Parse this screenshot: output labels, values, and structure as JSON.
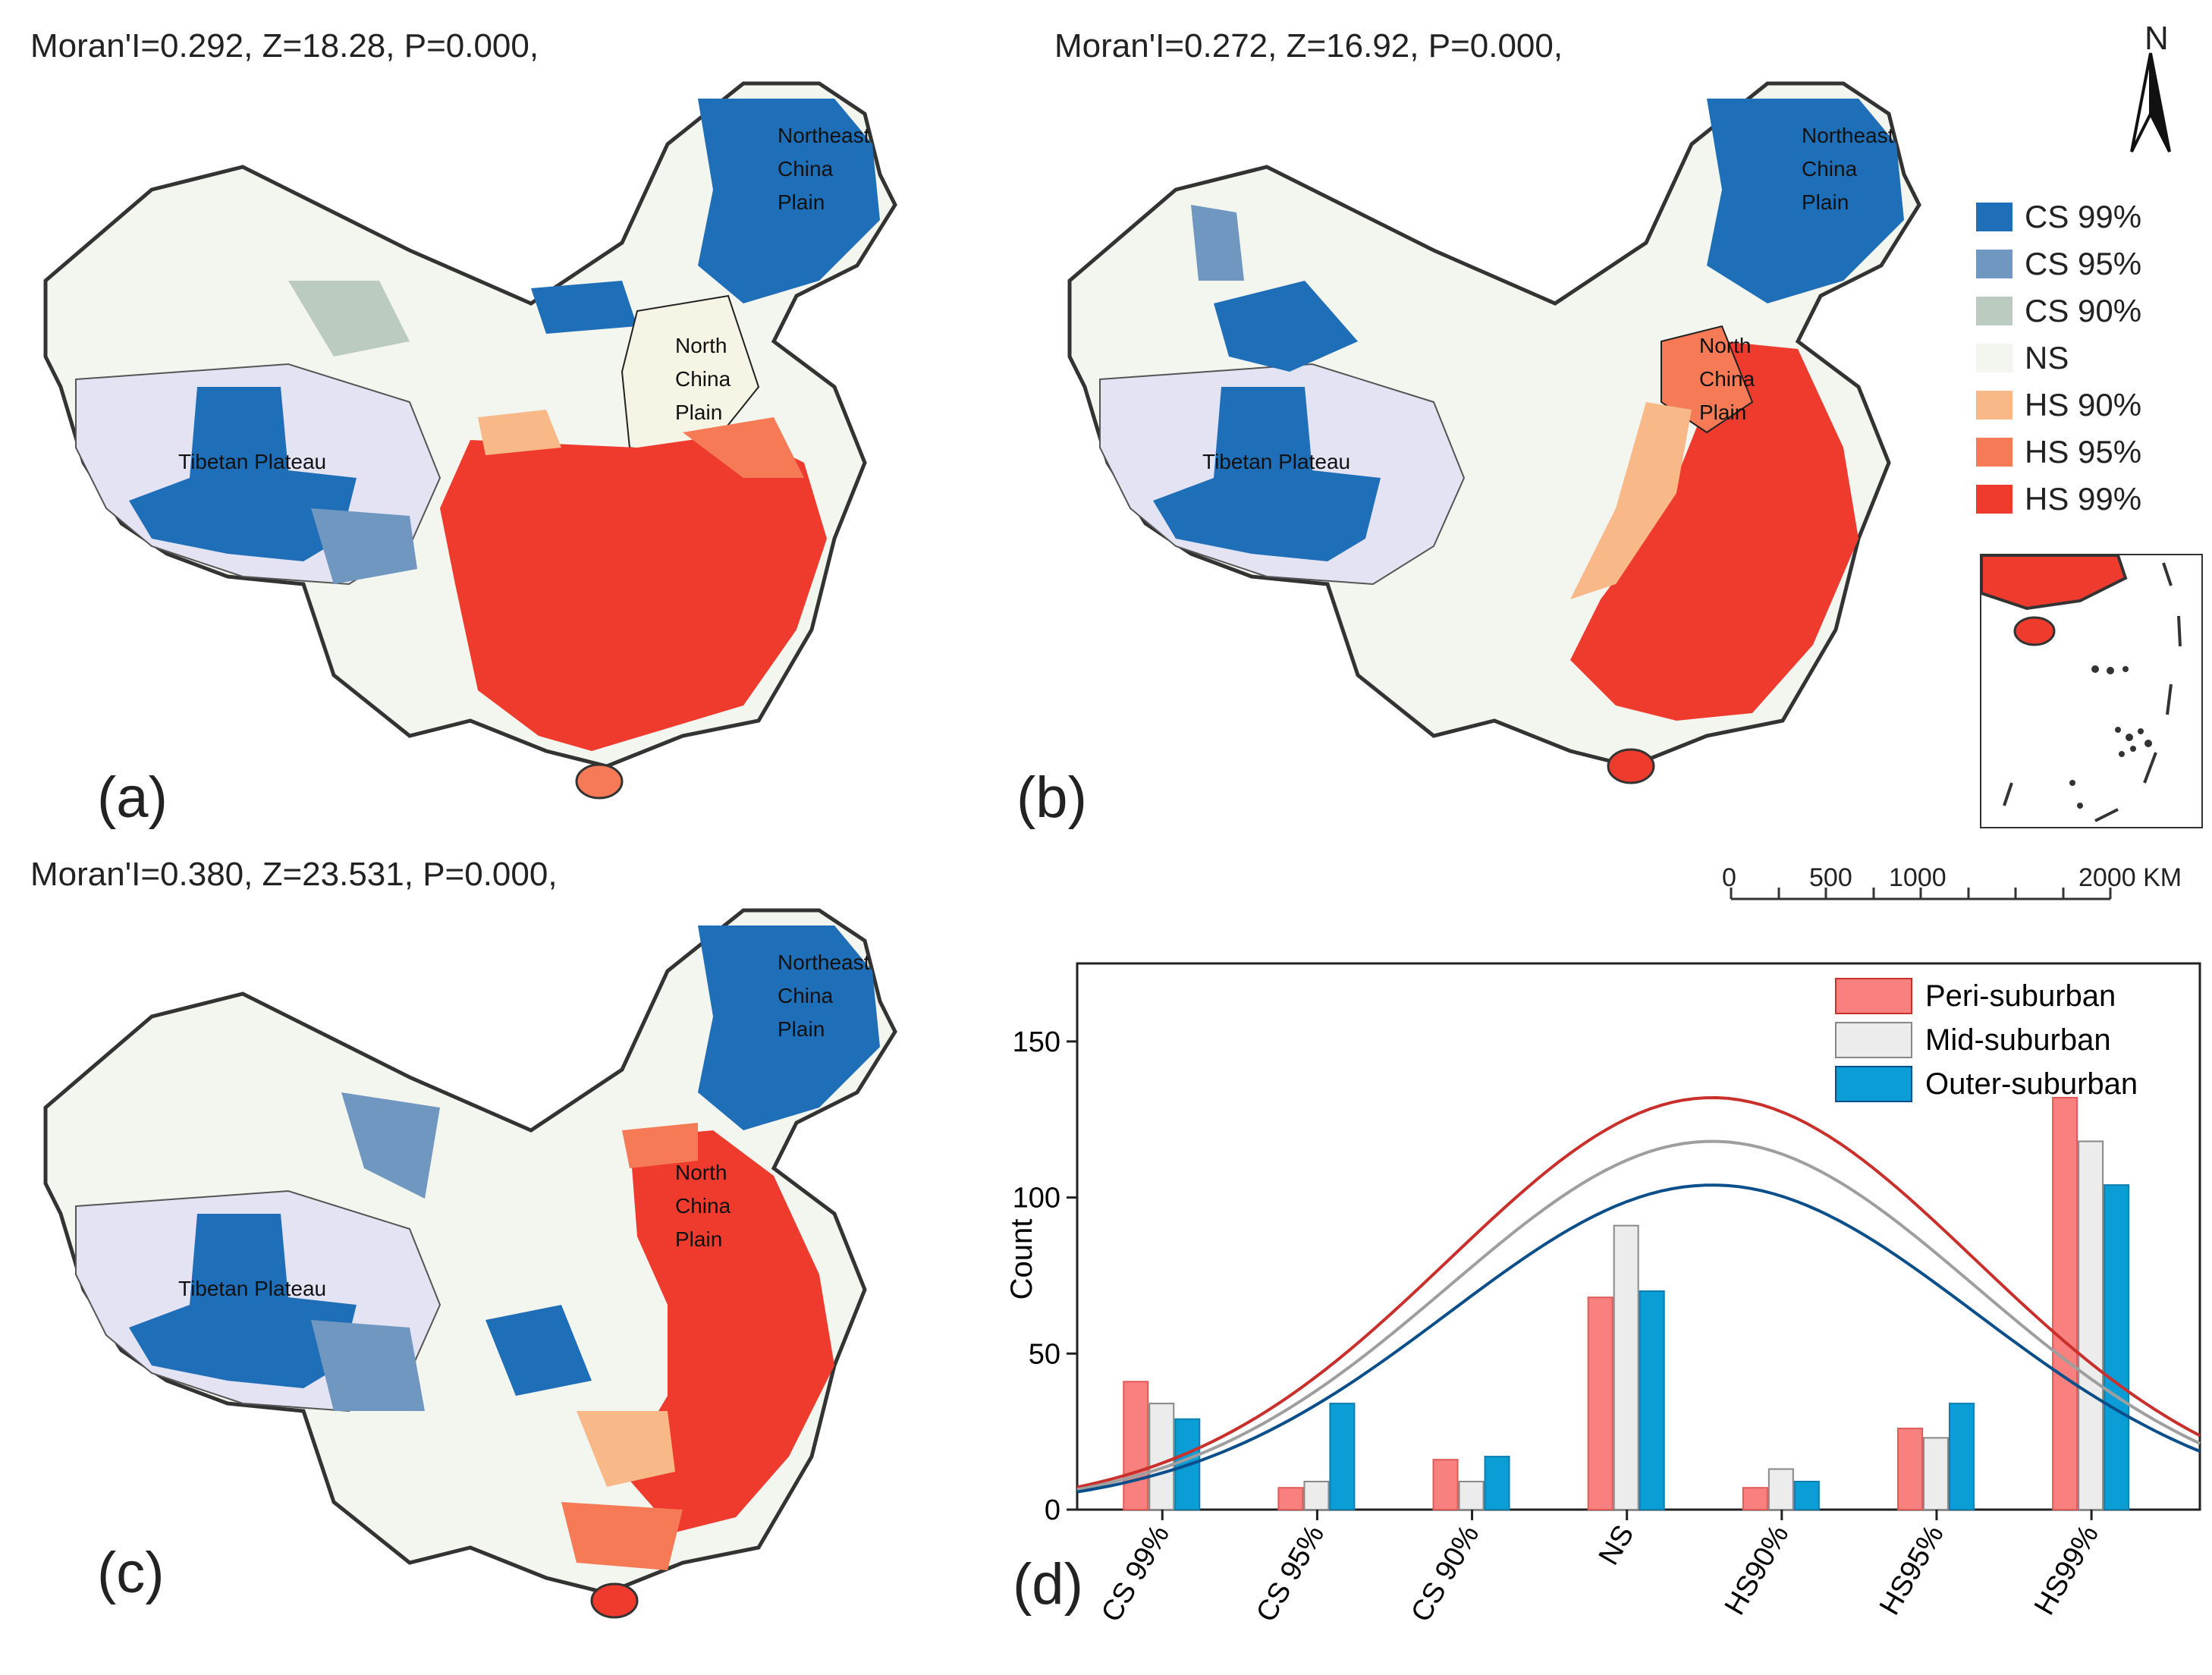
{
  "panels": [
    {
      "label": "(a)",
      "stat": "Moran'I=0.292, Z=18.28, P=0.000,"
    },
    {
      "label": "(b)",
      "stat": "Moran'I=0.272, Z=16.92, P=0.000,"
    },
    {
      "label": "(c)",
      "stat": "Moran'I=0.380, Z=23.531, P=0.000,"
    },
    {
      "label": "(d)"
    }
  ],
  "regions": {
    "northeast": [
      "Northeast",
      "China",
      "Plain"
    ],
    "north": [
      "North",
      "China",
      "Plain"
    ],
    "tibet": "Tibetan Plateau"
  },
  "north_arrow": "N",
  "legend": [
    {
      "label": "CS 99%",
      "color": "#1f6fb8"
    },
    {
      "label": "CS 95%",
      "color": "#7097c0"
    },
    {
      "label": "CS 90%",
      "color": "#bccbbf"
    },
    {
      "label": "NS",
      "color": "#f3f5ef"
    },
    {
      "label": "HS 90%",
      "color": "#f9b888"
    },
    {
      "label": "HS 95%",
      "color": "#f57a55"
    },
    {
      "label": "HS 99%",
      "color": "#ee3b2e"
    }
  ],
  "scale": {
    "ticks": [
      "0",
      "500",
      "1000",
      "2000 KM"
    ]
  },
  "chart_data": {
    "type": "bar",
    "categories": [
      "CS 99%",
      "CS 95%",
      "CS 90%",
      "NS",
      "HS90%",
      "HS95%",
      "HS99%"
    ],
    "series": [
      {
        "name": "Peri-suburban",
        "values": [
          41,
          7,
          16,
          68,
          7,
          26,
          132
        ],
        "color": "#f8817f",
        "curve": "#c9302c"
      },
      {
        "name": "Mid-suburban",
        "values": [
          34,
          9,
          9,
          91,
          13,
          23,
          118
        ],
        "color": "#ececec",
        "curve": "#9e9e9e"
      },
      {
        "name": "Outer-suburban",
        "values": [
          29,
          34,
          17,
          70,
          9,
          34,
          104
        ],
        "color": "#0a9dd6",
        "curve": "#0b4f8a"
      }
    ],
    "ylabel": "Count",
    "xlabel": "",
    "ylim": [
      0,
      175
    ],
    "yticks": [
      0,
      50,
      100,
      150
    ]
  }
}
